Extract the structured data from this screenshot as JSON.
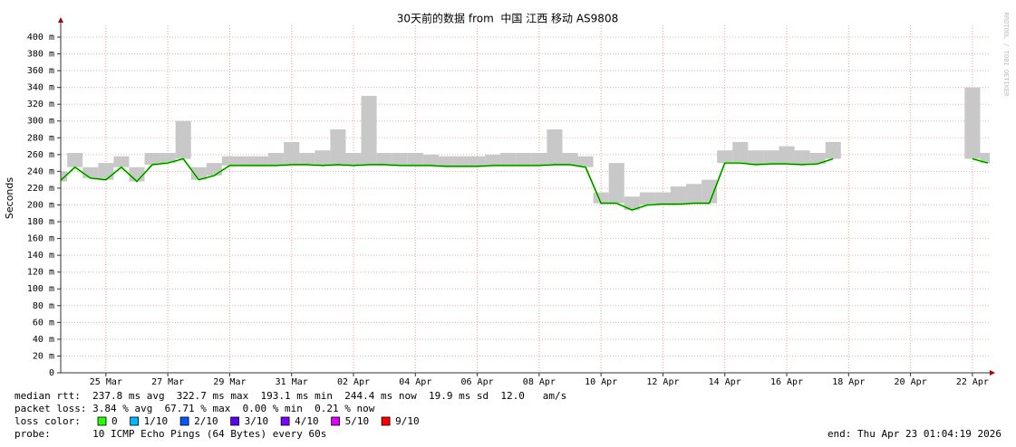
{
  "chart_data": {
    "type": "smoke",
    "title": "30天前的数据 from  中国 江西 移动 AS9808",
    "y_label": "Seconds",
    "watermark": "RRDTOOL / TOBI OETIKER",
    "xlim": [
      -0.46,
      29.56
    ],
    "xticks": [
      {
        "value": 1,
        "label": "25 Mar"
      },
      {
        "value": 3,
        "label": "27 Mar"
      },
      {
        "value": 5,
        "label": "29 Mar"
      },
      {
        "value": 7,
        "label": "31 Mar"
      },
      {
        "value": 9,
        "label": "02 Apr"
      },
      {
        "value": 11,
        "label": "04 Apr"
      },
      {
        "value": 13,
        "label": "06 Apr"
      },
      {
        "value": 15,
        "label": "08 Apr"
      },
      {
        "value": 17,
        "label": "10 Apr"
      },
      {
        "value": 19,
        "label": "12 Apr"
      },
      {
        "value": 21,
        "label": "14 Apr"
      },
      {
        "value": 23,
        "label": "16 Apr"
      },
      {
        "value": 25,
        "label": "18 Apr"
      },
      {
        "value": 27,
        "label": "20 Apr"
      },
      {
        "value": 29,
        "label": "22 Apr"
      }
    ],
    "ylim": [
      0,
      414
    ],
    "yticks": [
      0,
      {
        "value": 20,
        "label": "20 m"
      },
      {
        "value": 40,
        "label": "40 m"
      },
      {
        "value": 60,
        "label": "60 m"
      },
      {
        "value": 80,
        "label": "80 m"
      },
      {
        "value": 100,
        "label": "100 m"
      },
      {
        "value": 120,
        "label": "120 m"
      },
      {
        "value": 140,
        "label": "140 m"
      },
      {
        "value": 160,
        "label": "160 m"
      },
      {
        "value": 180,
        "label": "180 m"
      },
      {
        "value": 200,
        "label": "200 m"
      },
      {
        "value": 220,
        "label": "220 m"
      },
      {
        "value": 240,
        "label": "240 m"
      },
      {
        "value": 260,
        "label": "260 m"
      },
      {
        "value": 280,
        "label": "280 m"
      },
      {
        "value": 300,
        "label": "300 m"
      },
      {
        "value": 320,
        "label": "320 m"
      },
      {
        "value": 340,
        "label": "340 m"
      },
      {
        "value": 360,
        "label": "360 m"
      },
      {
        "value": 380,
        "label": "380 m"
      },
      {
        "value": 400,
        "label": "400 m"
      }
    ],
    "grid": true,
    "x": [
      -0.5,
      0,
      0.5,
      1,
      1.5,
      2,
      2.5,
      3,
      3.5,
      4,
      4.5,
      5,
      5.5,
      6,
      6.5,
      7,
      7.5,
      8,
      8.5,
      9,
      9.5,
      10,
      10.5,
      11,
      11.5,
      12,
      12.5,
      13,
      13.5,
      14,
      14.5,
      15,
      15.5,
      16,
      16.5,
      17,
      17.5,
      18,
      18.5,
      19,
      19.5,
      20,
      20.5,
      21,
      21.5,
      22,
      22.5,
      23,
      23.5,
      24,
      24.5,
      25,
      25.5,
      26,
      26.5,
      27,
      27.5,
      28,
      28.5,
      29,
      29.5
    ],
    "series": [
      {
        "color": "#26ff00",
        "values": [
          228,
          245,
          232,
          230,
          245,
          228,
          248,
          250,
          255,
          230,
          235,
          247,
          247,
          247,
          247,
          248,
          248,
          247,
          248,
          247,
          248,
          248,
          247,
          247,
          247,
          246,
          246,
          246,
          247,
          247,
          247,
          247,
          248,
          248,
          245,
          202,
          202,
          194,
          200,
          201,
          201,
          202,
          202,
          250,
          250,
          248,
          249,
          249,
          248,
          249,
          255,
          null,
          null,
          null,
          null,
          null,
          null,
          null,
          null,
          255,
          250
        ]
      },
      {
        "color": "#c8c8c8",
        "values": [
          240,
          262,
          245,
          250,
          258,
          245,
          262,
          262,
          300,
          245,
          250,
          258,
          258,
          258,
          262,
          275,
          262,
          265,
          290,
          262,
          330,
          262,
          262,
          262,
          260,
          258,
          258,
          258,
          260,
          262,
          262,
          262,
          290,
          262,
          258,
          215,
          250,
          210,
          215,
          215,
          222,
          225,
          230,
          265,
          275,
          265,
          265,
          270,
          265,
          262,
          275,
          null,
          null,
          null,
          null,
          null,
          null,
          null,
          null,
          340,
          262
        ]
      }
    ],
    "stats": [
      "median rtt:  237.8 ms avg  322.7 ms max  193.1 ms min  244.4 ms now  19.9 ms sd  12.0   am/s",
      "packet loss: 3.84 % avg  67.71 % max  0.00 % min  0.21 % now"
    ],
    "loss_title": "loss color:",
    "loss_colors": [
      {
        "label": "0",
        "color": "#26ff00"
      },
      {
        "label": "1/10",
        "color": "#00b8ff"
      },
      {
        "label": "2/10",
        "color": "#0059ff"
      },
      {
        "label": "3/10",
        "color": "#5e00ff"
      },
      {
        "label": "4/10",
        "color": "#7e00ff"
      },
      {
        "label": "5/10",
        "color": "#dd00ff"
      },
      {
        "label": "9/10",
        "color": "#ff0000"
      }
    ],
    "probe": "probe:       10 ICMP Echo Pings (64 Bytes) every 60s",
    "end": "end: Thu Apr 23 01:04:19 2026"
  }
}
